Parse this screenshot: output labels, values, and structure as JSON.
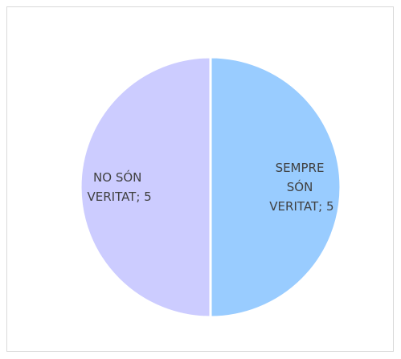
{
  "chart_data": {
    "type": "pie",
    "categories": [
      "SEMPRE SÓN VERITAT",
      "NO SÓN VERITAT"
    ],
    "values": [
      5,
      5
    ],
    "value_labels": [
      "SEMPRE SÓN VERITAT; 5",
      "NO SÓN VERITAT; 5"
    ],
    "colors": [
      "#99ccff",
      "#ccccff"
    ]
  }
}
